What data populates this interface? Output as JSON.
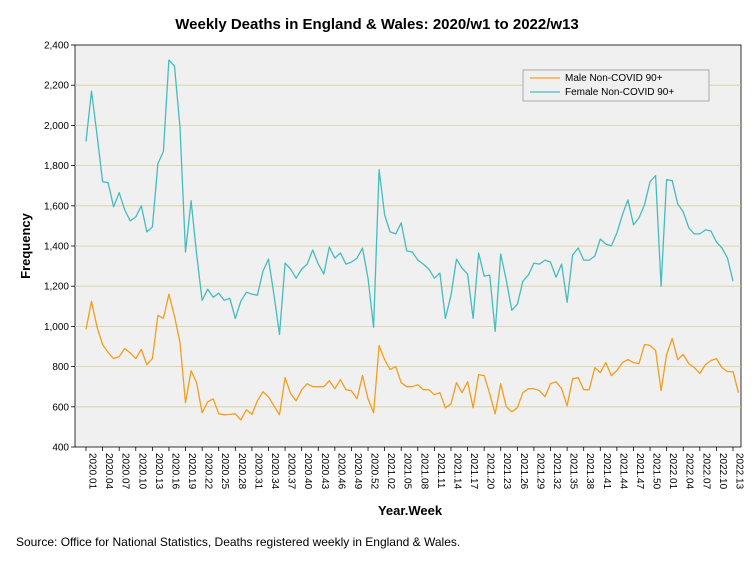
{
  "chart_data": {
    "type": "line",
    "title": "Weekly Deaths in England & Wales: 2020/w1 to 2022/w13",
    "xlabel": "Year.Week",
    "ylabel": "Frequency",
    "ylim": [
      400,
      2400
    ],
    "yticks": [
      400,
      600,
      800,
      1000,
      1200,
      1400,
      1600,
      1800,
      2000,
      2200,
      2400
    ],
    "ytick_labels": [
      "400",
      "600",
      "800",
      "1,000",
      "1,200",
      "1,400",
      "1,600",
      "1,800",
      "2,000",
      "2,200",
      "2,400"
    ],
    "x_count": 118,
    "x_tick_labels": [
      {
        "i": 0,
        "label": "2020.01"
      },
      {
        "i": 3,
        "label": "2020.04"
      },
      {
        "i": 6,
        "label": "2020.07"
      },
      {
        "i": 9,
        "label": "2020.10"
      },
      {
        "i": 12,
        "label": "2020.13"
      },
      {
        "i": 15,
        "label": "2020.16"
      },
      {
        "i": 18,
        "label": "2020.19"
      },
      {
        "i": 21,
        "label": "2020.22"
      },
      {
        "i": 24,
        "label": "2020.25"
      },
      {
        "i": 27,
        "label": "2020.28"
      },
      {
        "i": 30,
        "label": "2020.31"
      },
      {
        "i": 33,
        "label": "2020.34"
      },
      {
        "i": 36,
        "label": "2020.37"
      },
      {
        "i": 39,
        "label": "2020.40"
      },
      {
        "i": 42,
        "label": "2020.43"
      },
      {
        "i": 45,
        "label": "2020.46"
      },
      {
        "i": 48,
        "label": "2020.49"
      },
      {
        "i": 51,
        "label": "2020.52"
      },
      {
        "i": 54,
        "label": "2021.02"
      },
      {
        "i": 57,
        "label": "2021.05"
      },
      {
        "i": 60,
        "label": "2021.08"
      },
      {
        "i": 63,
        "label": "2021.11"
      },
      {
        "i": 66,
        "label": "2021.14"
      },
      {
        "i": 69,
        "label": "2021.17"
      },
      {
        "i": 72,
        "label": "2021.20"
      },
      {
        "i": 75,
        "label": "2021.23"
      },
      {
        "i": 78,
        "label": "2021.26"
      },
      {
        "i": 81,
        "label": "2021.29"
      },
      {
        "i": 84,
        "label": "2021.32"
      },
      {
        "i": 87,
        "label": "2021.35"
      },
      {
        "i": 90,
        "label": "2021.38"
      },
      {
        "i": 93,
        "label": "2021.41"
      },
      {
        "i": 96,
        "label": "2021.44"
      },
      {
        "i": 99,
        "label": "2021.47"
      },
      {
        "i": 102,
        "label": "2021.50"
      },
      {
        "i": 105,
        "label": "2022.01"
      },
      {
        "i": 108,
        "label": "2022.04"
      },
      {
        "i": 111,
        "label": "2022.07"
      },
      {
        "i": 114,
        "label": "2022.10"
      },
      {
        "i": 117,
        "label": "2022.13"
      }
    ],
    "legend_position": "top-right",
    "grid": true,
    "series": [
      {
        "name": "Male Non-COVID 90+",
        "color": "#f59d1c",
        "values": [
          985,
          1125,
          995,
          910,
          870,
          840,
          850,
          890,
          868,
          840,
          885,
          810,
          840,
          1055,
          1040,
          1160,
          1050,
          920,
          620,
          780,
          720,
          570,
          625,
          640,
          565,
          560,
          562,
          565,
          535,
          585,
          562,
          630,
          675,
          650,
          605,
          560,
          745,
          665,
          630,
          685,
          715,
          700,
          700,
          700,
          730,
          690,
          735,
          685,
          680,
          640,
          755,
          640,
          570,
          905,
          835,
          785,
          800,
          720,
          700,
          700,
          710,
          685,
          685,
          660,
          670,
          595,
          615,
          720,
          670,
          725,
          595,
          760,
          755,
          665,
          565,
          715,
          600,
          575,
          595,
          670,
          690,
          690,
          680,
          650,
          715,
          725,
          690,
          605,
          740,
          745,
          685,
          685,
          795,
          770,
          820,
          755,
          780,
          820,
          835,
          820,
          815,
          910,
          905,
          880,
          680,
          860,
          940,
          835,
          860,
          815,
          795,
          765,
          810,
          830,
          840,
          795,
          775,
          775,
          670
        ]
      },
      {
        "name": "Female Non-COVID 90+",
        "color": "#45bcc0",
        "values": [
          1920,
          2170,
          1950,
          1720,
          1715,
          1595,
          1665,
          1580,
          1525,
          1545,
          1600,
          1470,
          1495,
          1810,
          1870,
          2325,
          2295,
          1990,
          1370,
          1625,
          1360,
          1130,
          1185,
          1145,
          1165,
          1130,
          1140,
          1040,
          1125,
          1170,
          1160,
          1155,
          1275,
          1335,
          1155,
          960,
          1315,
          1285,
          1240,
          1285,
          1310,
          1380,
          1310,
          1260,
          1395,
          1340,
          1365,
          1310,
          1320,
          1340,
          1390,
          1240,
          995,
          1780,
          1555,
          1470,
          1460,
          1515,
          1375,
          1370,
          1330,
          1310,
          1285,
          1240,
          1265,
          1040,
          1155,
          1335,
          1290,
          1260,
          1040,
          1365,
          1250,
          1255,
          975,
          1360,
          1230,
          1080,
          1110,
          1225,
          1255,
          1315,
          1310,
          1330,
          1320,
          1245,
          1310,
          1120,
          1355,
          1390,
          1330,
          1330,
          1350,
          1435,
          1410,
          1400,
          1465,
          1555,
          1630,
          1505,
          1540,
          1605,
          1720,
          1750,
          1200,
          1730,
          1725,
          1610,
          1570,
          1490,
          1460,
          1460,
          1480,
          1475,
          1420,
          1390,
          1340,
          1225
        ]
      }
    ]
  },
  "source_text": "Source: Office for National Statistics, Deaths registered weekly in England & Wales."
}
